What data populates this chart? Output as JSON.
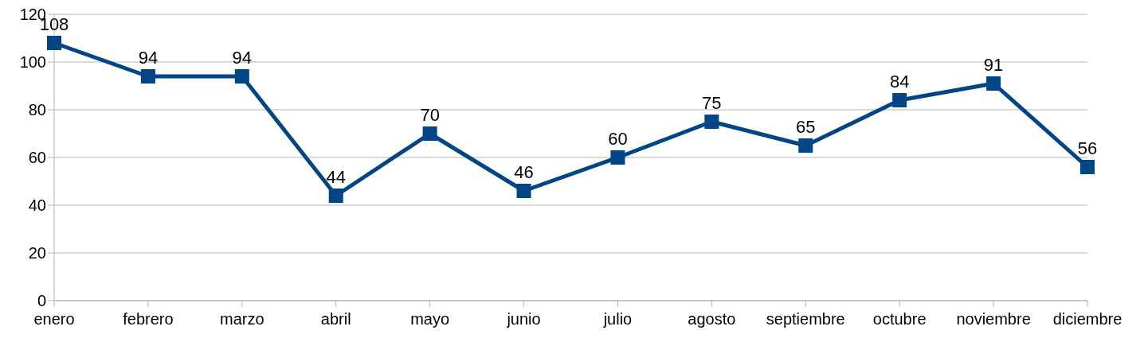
{
  "chart_data": {
    "type": "line",
    "categories": [
      "enero",
      "febrero",
      "marzo",
      "abril",
      "mayo",
      "junio",
      "julio",
      "agosto",
      "septiembre",
      "octubre",
      "noviembre",
      "diciembre"
    ],
    "series": [
      {
        "color": "#004586",
        "values": [
          108,
          94,
          94,
          44,
          70,
          46,
          60,
          75,
          65,
          84,
          91,
          56
        ]
      }
    ],
    "ylim": [
      0,
      120
    ],
    "yticks": [
      0,
      20,
      40,
      60,
      80,
      100,
      120
    ],
    "grid": "y",
    "marker": "square",
    "line_style": "solid",
    "data_labels": true,
    "legend": false
  }
}
